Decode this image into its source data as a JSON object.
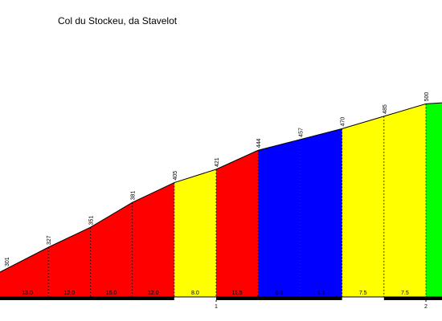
{
  "chart_data": {
    "type": "area",
    "title": "Col du Stockeu, da Stavelot",
    "xlabel": "",
    "ylabel": "",
    "x_unit_step_km": 0.2,
    "segments": [
      {
        "km_start": 0.0,
        "km_end": 0.2,
        "alt_start": 301,
        "alt_end": 327,
        "grade_label": "13.0",
        "color": "#ff0000"
      },
      {
        "km_start": 0.2,
        "km_end": 0.4,
        "alt_start": 327,
        "alt_end": 351,
        "grade_label": "12.0",
        "color": "#ff0000"
      },
      {
        "km_start": 0.4,
        "km_end": 0.6,
        "alt_start": 351,
        "alt_end": 381,
        "grade_label": "15.0",
        "color": "#ff0000"
      },
      {
        "km_start": 0.6,
        "km_end": 0.8,
        "alt_start": 381,
        "alt_end": 405,
        "grade_label": "12.0",
        "color": "#ff0000"
      },
      {
        "km_start": 0.8,
        "km_end": 1.0,
        "alt_start": 405,
        "alt_end": 421,
        "grade_label": "8.0",
        "color": "#ffff00"
      },
      {
        "km_start": 1.0,
        "km_end": 1.2,
        "alt_start": 421,
        "alt_end": 444,
        "grade_label": "11.5",
        "color": "#ff0000"
      },
      {
        "km_start": 1.2,
        "km_end": 1.4,
        "alt_start": 444,
        "alt_end": 457,
        "grade_label": "6.5",
        "color": "#0000ff"
      },
      {
        "km_start": 1.4,
        "km_end": 1.6,
        "alt_start": 457,
        "alt_end": 470,
        "grade_label": "6.5",
        "color": "#0000ff"
      },
      {
        "km_start": 1.6,
        "km_end": 1.8,
        "alt_start": 470,
        "alt_end": 485,
        "grade_label": "7.5",
        "color": "#ffff00"
      },
      {
        "km_start": 1.8,
        "km_end": 2.0,
        "alt_start": 485,
        "alt_end": 500,
        "grade_label": "7.5",
        "color": "#ffff00"
      },
      {
        "km_start": 2.0,
        "km_end": 2.2,
        "alt_start": 500,
        "alt_end": 503,
        "grade_label": "",
        "color": "#00ff00"
      }
    ],
    "altitude_labels": [
      {
        "km": 0.0,
        "alt": 301,
        "label": "301"
      },
      {
        "km": 0.2,
        "alt": 327,
        "label": "327"
      },
      {
        "km": 0.4,
        "alt": 351,
        "label": "351"
      },
      {
        "km": 0.6,
        "alt": 381,
        "label": "381"
      },
      {
        "km": 0.8,
        "alt": 405,
        "label": "405"
      },
      {
        "km": 1.0,
        "alt": 421,
        "label": "421"
      },
      {
        "km": 1.2,
        "alt": 444,
        "label": "444"
      },
      {
        "km": 1.4,
        "alt": 457,
        "label": "457"
      },
      {
        "km": 1.6,
        "alt": 470,
        "label": "470"
      },
      {
        "km": 1.8,
        "alt": 485,
        "label": "485"
      },
      {
        "km": 2.0,
        "alt": 500,
        "label": "500"
      }
    ],
    "km_ticks": [
      {
        "km": 1.0,
        "label": "1"
      },
      {
        "km": 2.0,
        "label": "2"
      }
    ],
    "legend": "none",
    "grid": false
  }
}
